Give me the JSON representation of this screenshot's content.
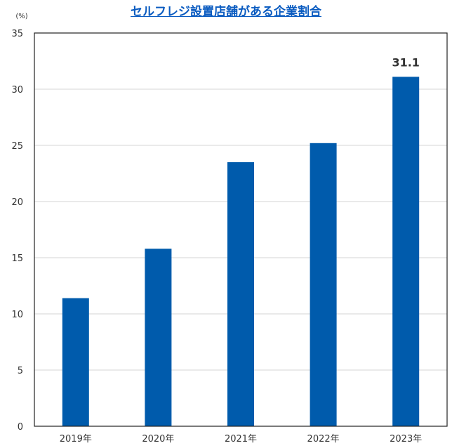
{
  "chart_data": {
    "type": "bar",
    "title": "セルフレジ設置店舗がある企業割合",
    "unit_label": "(%)",
    "categories": [
      "2019年",
      "2020年",
      "2021年",
      "2022年",
      "2023年"
    ],
    "values": [
      11.4,
      15.8,
      23.5,
      25.2,
      31.1
    ],
    "data_labels": [
      "",
      "",
      "",
      "",
      "31.1"
    ],
    "y_ticks": [
      "0",
      "5",
      "10",
      "15",
      "20",
      "25",
      "30",
      "35"
    ],
    "ylim": [
      0,
      35
    ],
    "grid": true,
    "bar_color": "#005bac",
    "title_color": "#0a5bc0"
  }
}
